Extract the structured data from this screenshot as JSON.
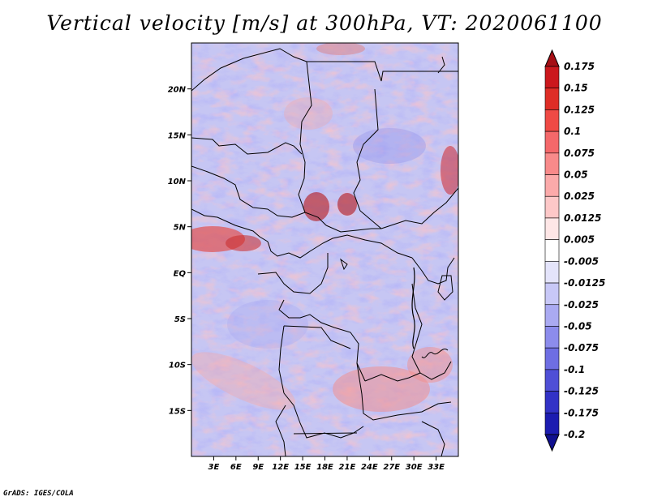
{
  "title": "Vertical velocity [m/s] at 300hPa, VT: 2020061100",
  "credit": "GrADS: IGES/COLA",
  "map": {
    "variable": "Vertical velocity",
    "units": "m/s",
    "level": "300hPa",
    "valid_time": "2020061100",
    "lon_range": [
      0,
      36
    ],
    "lat_range": [
      -20,
      25
    ],
    "lon_ticks": [
      {
        "value": 3,
        "label": "3E"
      },
      {
        "value": 6,
        "label": "6E"
      },
      {
        "value": 9,
        "label": "9E"
      },
      {
        "value": 12,
        "label": "12E"
      },
      {
        "value": 15,
        "label": "15E"
      },
      {
        "value": 18,
        "label": "18E"
      },
      {
        "value": 21,
        "label": "21E"
      },
      {
        "value": 24,
        "label": "24E"
      },
      {
        "value": 27,
        "label": "27E"
      },
      {
        "value": 30,
        "label": "30E"
      },
      {
        "value": 33,
        "label": "33E"
      }
    ],
    "lat_ticks": [
      {
        "value": 20,
        "label": "20N"
      },
      {
        "value": 15,
        "label": "15N"
      },
      {
        "value": 10,
        "label": "10N"
      },
      {
        "value": 5,
        "label": "5N"
      },
      {
        "value": 0,
        "label": "EQ"
      },
      {
        "value": -5,
        "label": "5S"
      },
      {
        "value": -10,
        "label": "10S"
      },
      {
        "value": -15,
        "label": "15S"
      }
    ]
  },
  "colorbar": {
    "levels": [
      "0.175",
      "0.15",
      "0.125",
      "0.1",
      "0.075",
      "0.05",
      "0.025",
      "0.0125",
      "0.005",
      "-0.005",
      "-0.0125",
      "-0.025",
      "-0.05",
      "-0.075",
      "-0.1",
      "-0.125",
      "-0.175",
      "-0.2"
    ],
    "colors": [
      "#a50f15",
      "#cb181d",
      "#de2d26",
      "#ef4a45",
      "#f4686a",
      "#f88a8a",
      "#fbaaaa",
      "#fdc8c8",
      "#fee6e6",
      "#ffffff",
      "#e4e4fb",
      "#c8c8f7",
      "#aaaaf2",
      "#8c8cec",
      "#6e6ee3",
      "#4f4fd6",
      "#3232c6",
      "#1c1cb0",
      "#10108f"
    ]
  }
}
